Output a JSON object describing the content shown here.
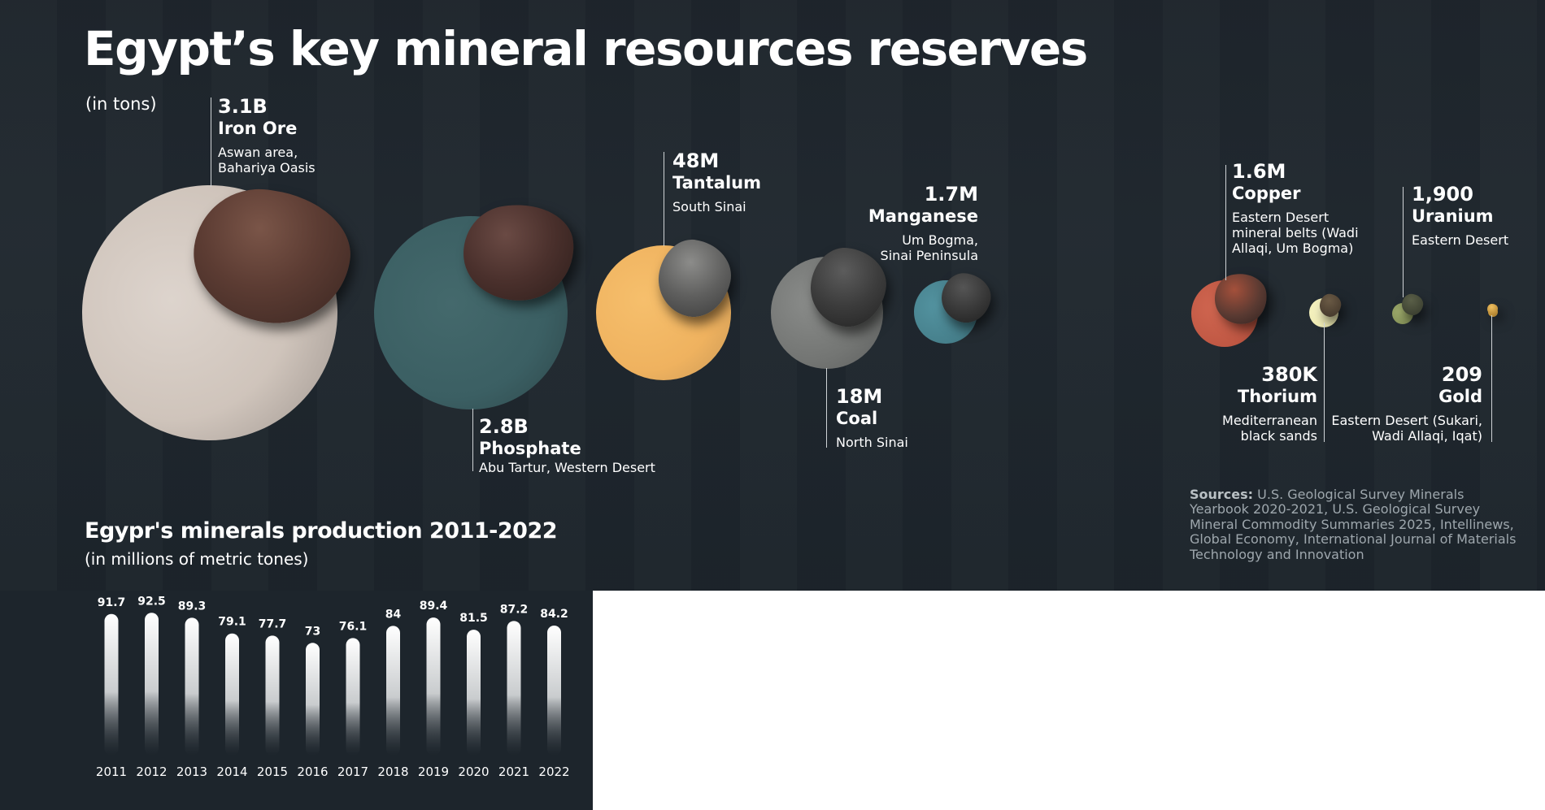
{
  "title": "Egypt’s key mineral resources reserves",
  "unit": "(in tons)",
  "minerals": [
    {
      "value": "3.1B",
      "name": "Iron Ore",
      "location": [
        "Aswan area,",
        "Bahariya Oasis"
      ],
      "color": "#d8cfc8"
    },
    {
      "value": "2.8B",
      "name": "Phosphate",
      "location": [
        "Abu Tartur, Western Desert"
      ],
      "color": "#3e6468"
    },
    {
      "value": "48M",
      "name": "Tantalum",
      "location": [
        "South Sinai"
      ],
      "color": "#f2b665"
    },
    {
      "value": "18M",
      "name": "Coal",
      "location": [
        "North Sinai"
      ],
      "color": "#7b7d7c"
    },
    {
      "value": "1.7M",
      "name": "Manganese",
      "location": [
        "Um Bogma,",
        "Sinai Peninsula"
      ],
      "color": "#4a8591"
    },
    {
      "value": "1.6M",
      "name": "Copper",
      "location": [
        "Eastern Desert",
        "mineral belts (Wadi",
        "Allaqi, Um Bogma)"
      ],
      "color": "#c45a45"
    },
    {
      "value": "380K",
      "name": "Thorium",
      "location": [
        "Mediterranean",
        "black sands"
      ],
      "color": "#f2efb8"
    },
    {
      "value": "1,900",
      "name": "Uranium",
      "location": [
        "Eastern Desert"
      ],
      "color": "#8d9a5e"
    },
    {
      "value": "209",
      "name": "Gold",
      "location": [
        "Eastern Desert (Sukari,",
        "Wadi Allaqi, Iqat)"
      ],
      "color": "#d9a440"
    }
  ],
  "sources_label": "Sources:",
  "sources_text": "U.S. Geological Survey Minerals Yearbook 2020-2021, U.S. Geological Survey Mineral Commodity Summaries 2025, Intellinews, Global Economy, International Journal of Materials Technology and Innovation",
  "production": {
    "title": "Egypr's minerals production 2011-2022",
    "unit": "(in millions of metric tones)"
  },
  "chart_data": {
    "type": "bar",
    "title": "Egypr's minerals production 2011-2022",
    "subtitle": "(in millions of metric tones)",
    "categories": [
      "2011",
      "2012",
      "2013",
      "2014",
      "2015",
      "2016",
      "2017",
      "2018",
      "2019",
      "2020",
      "2021",
      "2022"
    ],
    "values": [
      91.7,
      92.5,
      89.3,
      79.1,
      77.7,
      73,
      76.1,
      84,
      89.4,
      81.5,
      87.2,
      84.2
    ],
    "xlabel": "",
    "ylabel": "",
    "grid": false,
    "legend": "none"
  }
}
